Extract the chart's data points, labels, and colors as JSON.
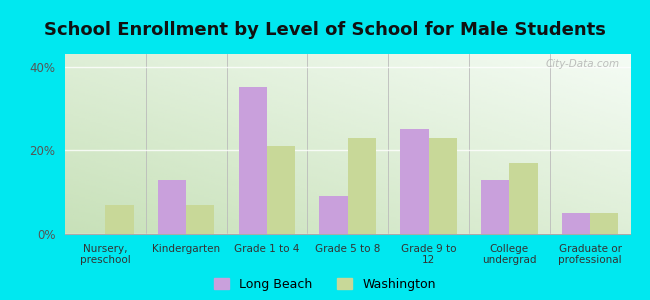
{
  "title": "School Enrollment by Level of School for Male Students",
  "categories": [
    "Nursery,\npreschool",
    "Kindergarten",
    "Grade 1 to 4",
    "Grade 5 to 8",
    "Grade 9 to\n12",
    "College\nundergrad",
    "Graduate or\nprofessional"
  ],
  "long_beach": [
    0.0,
    13.0,
    35.0,
    9.0,
    25.0,
    13.0,
    5.0
  ],
  "washington": [
    7.0,
    7.0,
    21.0,
    23.0,
    23.0,
    17.0,
    5.0
  ],
  "lb_color": "#c9a0dc",
  "wa_color": "#c8d898",
  "bg_outer": "#00e8f0",
  "title_fontsize": 13,
  "yticks": [
    0,
    20,
    40
  ],
  "ylim": [
    0,
    43
  ],
  "legend_labels": [
    "Long Beach",
    "Washington"
  ],
  "watermark": "City-Data.com"
}
